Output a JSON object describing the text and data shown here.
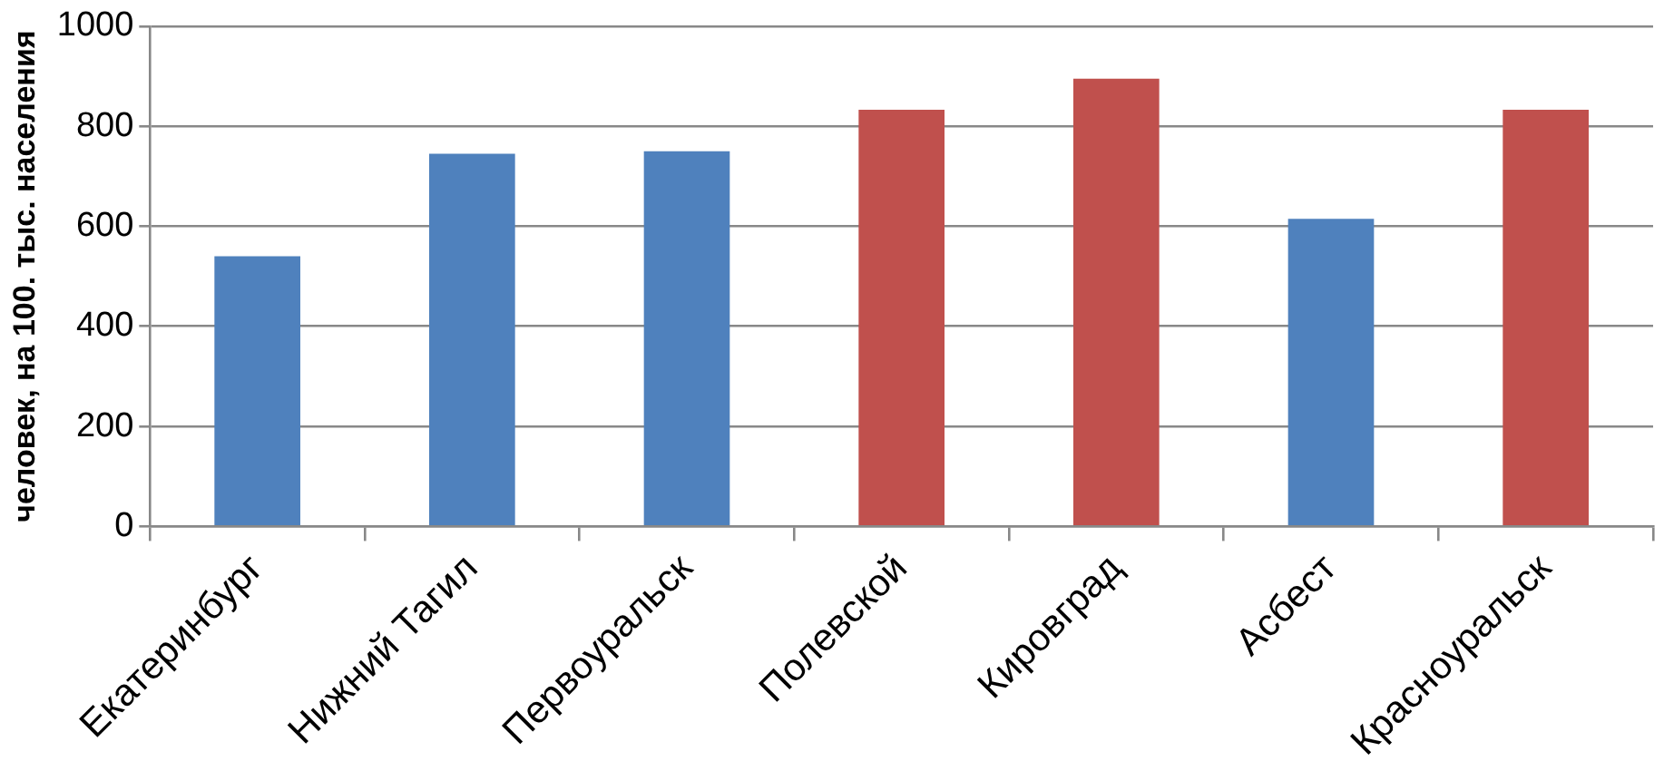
{
  "chart_data": {
    "type": "bar",
    "ylabel": "человек, на 100. тыс. населения",
    "categories": [
      "Екатеринбург",
      "Нижний Тагил",
      "Первоуральск",
      "Полевской",
      "Кировград",
      "Асбест",
      "Красноуральск"
    ],
    "values": [
      540,
      745,
      750,
      833,
      895,
      615,
      833
    ],
    "colors": [
      "#4f81bd",
      "#4f81bd",
      "#4f81bd",
      "#c0504d",
      "#c0504d",
      "#4f81bd",
      "#c0504d"
    ],
    "ylim": [
      0,
      1000
    ],
    "yticks": [
      0,
      200,
      400,
      600,
      800,
      1000
    ],
    "grid": "y",
    "legend": false
  }
}
